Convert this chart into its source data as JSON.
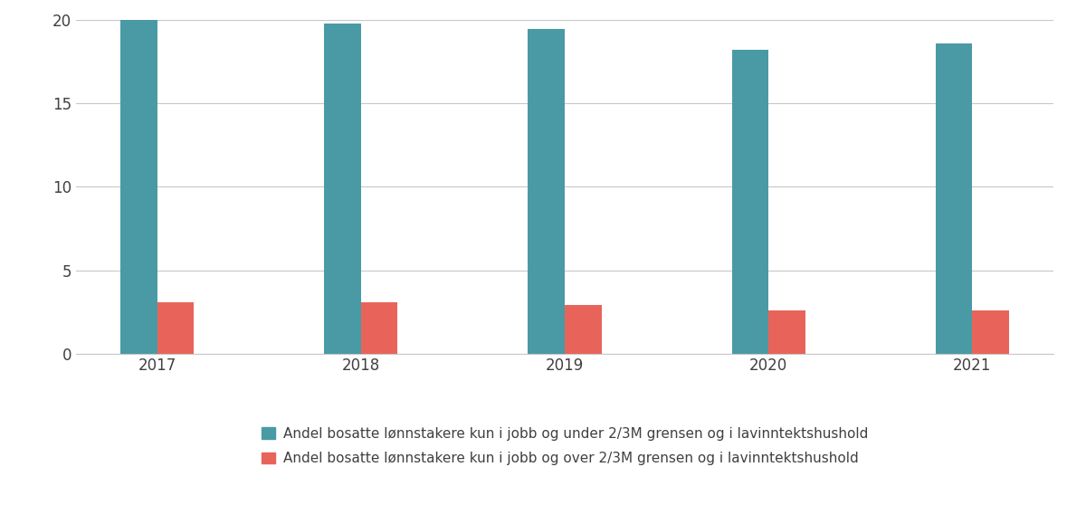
{
  "years": [
    "2017",
    "2018",
    "2019",
    "2020",
    "2021"
  ],
  "under_2_3M": [
    20.0,
    19.8,
    19.5,
    18.2,
    18.6
  ],
  "over_2_3M": [
    3.1,
    3.1,
    2.9,
    2.6,
    2.6
  ],
  "color_under": "#4a9aa5",
  "color_over": "#e8645a",
  "legend_under": "Andel bosatte lønnstakere kun i jobb og under 2/3M grensen og i lavinntektshushold",
  "legend_over": "Andel bosatte lønnstakere kun i jobb og over 2/3M grensen og i lavinntektshushold",
  "ylim": [
    0,
    20
  ],
  "yticks": [
    0,
    5,
    10,
    15,
    20
  ],
  "bar_width": 0.18,
  "background_color": "#ffffff",
  "grid_color": "#c8c8c8",
  "text_color": "#404040",
  "tick_fontsize": 12,
  "legend_fontsize": 11
}
